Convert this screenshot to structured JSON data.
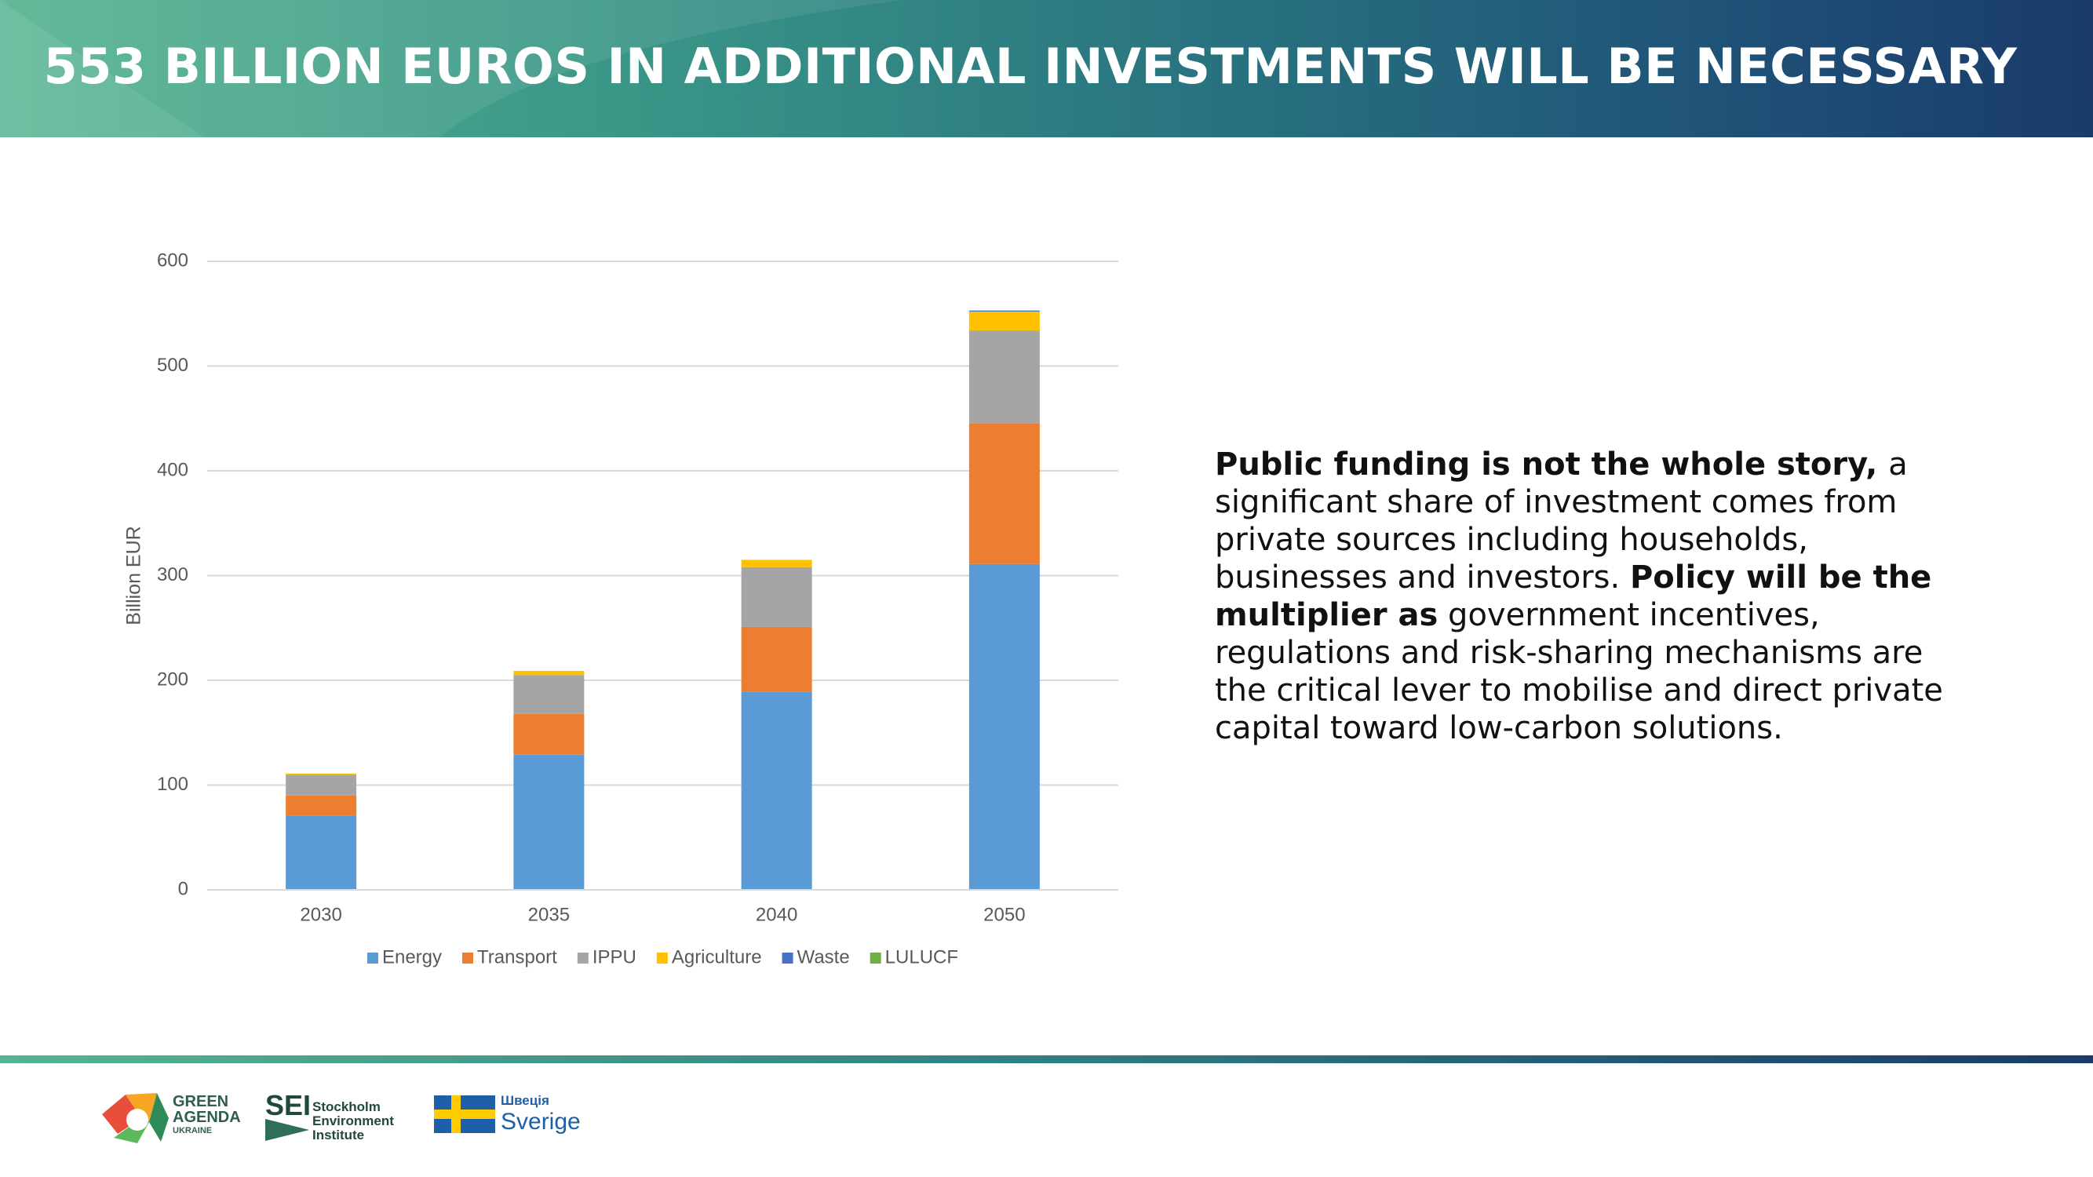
{
  "header": {
    "title": "553 BILLION EUROS IN ADDITIONAL INVESTMENTS WILL BE NECESSARY"
  },
  "chart_data": {
    "type": "stacked_bar",
    "y_label": "Billion EUR",
    "categories": [
      "2030",
      "2035",
      "2040",
      "2050"
    ],
    "series": [
      {
        "name": "Energy",
        "color": "#5b9bd5",
        "values": [
          71,
          129,
          189,
          311
        ]
      },
      {
        "name": "Transport",
        "color": "#ed7d31",
        "values": [
          19,
          39,
          62,
          134
        ]
      },
      {
        "name": "IPPU",
        "color": "#a5a5a5",
        "values": [
          20,
          37,
          57,
          89
        ]
      },
      {
        "name": "Agriculture",
        "color": "#ffc000",
        "values": [
          1,
          4,
          7,
          18
        ]
      },
      {
        "name": "Waste",
        "color": "#4472c4",
        "values": [
          0,
          0,
          0,
          1
        ]
      },
      {
        "name": "LULUCF",
        "color": "#70ad47",
        "values": [
          0,
          0,
          0,
          0
        ]
      }
    ],
    "ylim": [
      0,
      600
    ],
    "yticks": [
      0,
      100,
      200,
      300,
      400,
      500,
      600
    ],
    "grid": true,
    "legend": "bottom"
  },
  "text": {
    "runs": [
      {
        "text": "Public funding is not the whole story, ",
        "bold": true
      },
      {
        "text": "a significant share of investment comes from private sources including households, businesses and investors. ",
        "bold": false
      },
      {
        "text": "Policy will be the multiplier as",
        "bold": true
      },
      {
        "text": " government incentives, regulations and risk-sharing mechanisms are the critical lever to mobilise and direct private capital toward low-carbon solutions.",
        "bold": false
      }
    ]
  },
  "footer": {
    "green_agenda": [
      "GREEN",
      "AGENDA",
      "UKRAINE"
    ],
    "sei": "SEI",
    "sei_name": [
      "Stockholm",
      "Environment",
      "Institute"
    ],
    "sweden": [
      "Швеція",
      "Sverige"
    ]
  }
}
